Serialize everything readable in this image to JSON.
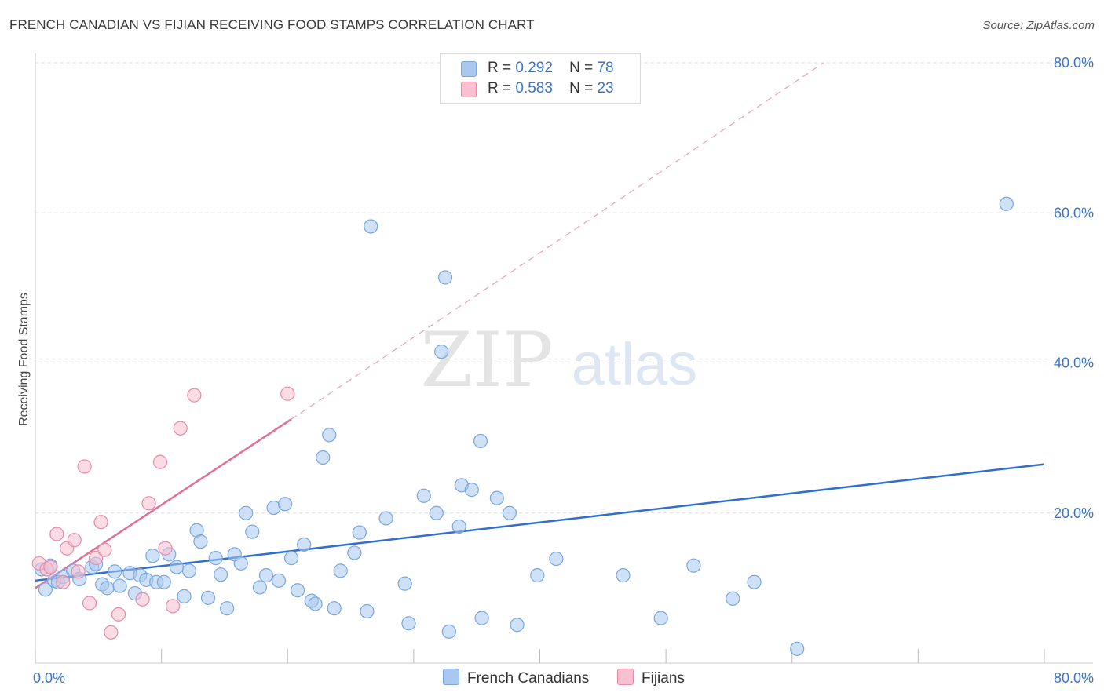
{
  "header": {
    "title": "FRENCH CANADIAN VS FIJIAN RECEIVING FOOD STAMPS CORRELATION CHART",
    "source": "Source: ZipAtlas.com"
  },
  "watermark": {
    "zip": "ZIP",
    "atlas": "atlas"
  },
  "legend": {
    "rows": [
      {
        "r_label": "R =",
        "r_value": "0.292",
        "n_label": "N =",
        "n_value": "78",
        "color": "#a8c8f0",
        "edge": "#7aa6dc"
      },
      {
        "r_label": "R =",
        "r_value": "0.583",
        "n_label": "N =",
        "n_value": "23",
        "color": "#f8c0d0",
        "edge": "#e88aa6"
      }
    ]
  },
  "bottom_legend": {
    "items": [
      {
        "label": "French Canadians",
        "color": "#a8c8f0",
        "edge": "#7aa6dc"
      },
      {
        "label": "Fijians",
        "color": "#f8c0d0",
        "edge": "#e88aa6"
      }
    ]
  },
  "chart_data": {
    "type": "scatter",
    "title": "FRENCH CANADIAN VS FIJIAN RECEIVING FOOD STAMPS CORRELATION CHART",
    "xlabel": "",
    "ylabel": "Receiving Food Stamps",
    "xlim": [
      0,
      80
    ],
    "ylim": [
      0,
      80
    ],
    "x_tick_labels": [
      "0.0%",
      "80.0%"
    ],
    "y_ticks": [
      20,
      40,
      60,
      80
    ],
    "y_tick_labels": [
      "20.0%",
      "40.0%",
      "60.0%",
      "80.0%"
    ],
    "grid": true,
    "legend_position": "top-center",
    "series": [
      {
        "name": "French Canadians",
        "color": "#a8c8f0",
        "edge": "#7aa6dc",
        "r": 0.292,
        "n": 78,
        "trend": {
          "x": [
            0,
            80
          ],
          "y": [
            11.0,
            26.5
          ],
          "color": "#2f6fd0",
          "extends": false
        },
        "points": [
          [
            0.5,
            12.5
          ],
          [
            0.8,
            9.8
          ],
          [
            1.2,
            13.0
          ],
          [
            1.5,
            11.0
          ],
          [
            1.8,
            10.8
          ],
          [
            2.2,
            11.5
          ],
          [
            3.0,
            12.3
          ],
          [
            3.5,
            11.2
          ],
          [
            4.5,
            12.8
          ],
          [
            4.8,
            13.2
          ],
          [
            5.3,
            10.5
          ],
          [
            5.7,
            10.0
          ],
          [
            6.3,
            12.2
          ],
          [
            6.7,
            10.3
          ],
          [
            7.5,
            12.0
          ],
          [
            7.9,
            9.3
          ],
          [
            8.3,
            11.7
          ],
          [
            8.8,
            11.1
          ],
          [
            9.3,
            14.3
          ],
          [
            9.6,
            10.8
          ],
          [
            10.2,
            10.8
          ],
          [
            10.6,
            14.5
          ],
          [
            11.2,
            12.8
          ],
          [
            11.8,
            8.9
          ],
          [
            12.2,
            12.3
          ],
          [
            12.8,
            17.7
          ],
          [
            13.1,
            16.2
          ],
          [
            13.7,
            8.7
          ],
          [
            14.3,
            14.0
          ],
          [
            14.7,
            11.8
          ],
          [
            15.2,
            7.3
          ],
          [
            15.8,
            14.5
          ],
          [
            16.3,
            13.3
          ],
          [
            16.7,
            20.0
          ],
          [
            17.2,
            17.5
          ],
          [
            17.8,
            10.1
          ],
          [
            18.3,
            11.7
          ],
          [
            18.9,
            20.7
          ],
          [
            19.3,
            11.0
          ],
          [
            19.8,
            21.2
          ],
          [
            20.3,
            14.0
          ],
          [
            20.8,
            9.7
          ],
          [
            21.3,
            15.8
          ],
          [
            21.9,
            8.3
          ],
          [
            22.2,
            7.9
          ],
          [
            22.8,
            27.4
          ],
          [
            23.3,
            30.4
          ],
          [
            23.7,
            7.3
          ],
          [
            24.2,
            12.3
          ],
          [
            25.3,
            14.7
          ],
          [
            25.7,
            17.4
          ],
          [
            26.3,
            6.9
          ],
          [
            26.6,
            58.2
          ],
          [
            27.8,
            19.3
          ],
          [
            29.3,
            10.6
          ],
          [
            29.6,
            5.3
          ],
          [
            30.8,
            22.3
          ],
          [
            31.8,
            20.0
          ],
          [
            32.2,
            41.5
          ],
          [
            32.5,
            51.4
          ],
          [
            32.8,
            4.2
          ],
          [
            33.6,
            18.2
          ],
          [
            33.8,
            23.7
          ],
          [
            34.6,
            23.1
          ],
          [
            35.3,
            29.6
          ],
          [
            35.4,
            6.0
          ],
          [
            36.6,
            22.0
          ],
          [
            37.6,
            20.0
          ],
          [
            38.2,
            5.1
          ],
          [
            39.8,
            11.7
          ],
          [
            41.3,
            13.9
          ],
          [
            46.6,
            11.7
          ],
          [
            49.6,
            6.0
          ],
          [
            52.2,
            13.0
          ],
          [
            55.3,
            8.6
          ],
          [
            57.0,
            10.8
          ],
          [
            60.4,
            1.9
          ],
          [
            77.0,
            61.2
          ]
        ]
      },
      {
        "name": "Fijians",
        "color": "#f8c0d0",
        "edge": "#e88aa6",
        "r": 0.583,
        "n": 23,
        "trend": {
          "x": [
            0,
            20.3
          ],
          "y": [
            10.0,
            32.5
          ],
          "dashed_to": [
            62.5,
            80
          ],
          "color": "#e07098"
        },
        "points": [
          [
            0.3,
            13.3
          ],
          [
            0.9,
            12.5
          ],
          [
            1.2,
            12.8
          ],
          [
            1.7,
            17.2
          ],
          [
            2.2,
            10.8
          ],
          [
            2.5,
            15.3
          ],
          [
            3.1,
            16.4
          ],
          [
            3.4,
            12.2
          ],
          [
            3.9,
            26.2
          ],
          [
            4.3,
            8.0
          ],
          [
            4.8,
            14.0
          ],
          [
            5.2,
            18.8
          ],
          [
            5.5,
            15.1
          ],
          [
            6.0,
            4.1
          ],
          [
            6.6,
            6.5
          ],
          [
            8.5,
            8.5
          ],
          [
            9.0,
            21.3
          ],
          [
            9.9,
            26.8
          ],
          [
            10.3,
            15.3
          ],
          [
            10.9,
            7.6
          ],
          [
            11.5,
            31.3
          ],
          [
            12.6,
            35.7
          ],
          [
            20.0,
            35.9
          ]
        ]
      }
    ]
  }
}
